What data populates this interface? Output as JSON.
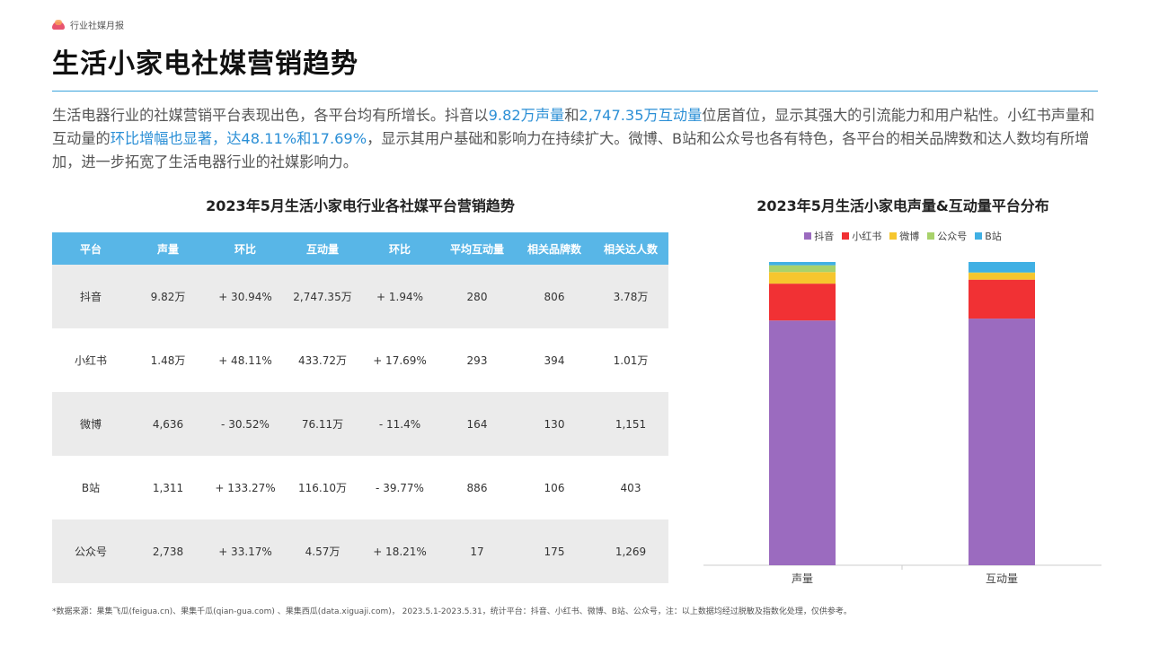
{
  "brand": {
    "name": "行业社媒月报"
  },
  "page_title": "生活小家电社媒营销趋势",
  "intro": {
    "p1": "生活电器行业的社媒营销平台表现出色，各平台均有所增长。抖音以",
    "h1": "9.82万声量",
    "p2": "和",
    "h2": "2,747.35万互动量",
    "p3": "位居首位，显示其强大的引流能力和用户粘性。小红书声量和互动量的",
    "h3": "环比增幅也显著，达48.11%和17.69%",
    "p4": "，显示其用户基础和影响力在持续扩大。微博、B站和公众号也各有特色，各平台的相关品牌数和达人数均有所增加，进一步拓宽了生活电器行业的社媒影响力。"
  },
  "table": {
    "title": "2023年5月生活小家电行业各社媒平台营销趋势",
    "headers": [
      "平台",
      "声量",
      "环比",
      "互动量",
      "环比",
      "平均互动量",
      "相关品牌数",
      "相关达人数"
    ],
    "rows": [
      [
        "抖音",
        "9.82万",
        "+ 30.94%",
        "2,747.35万",
        "+ 1.94%",
        "280",
        "806",
        "3.78万"
      ],
      [
        "小红书",
        "1.48万",
        "+ 48.11%",
        "433.72万",
        "+ 17.69%",
        "293",
        "394",
        "1.01万"
      ],
      [
        "微博",
        "4,636",
        "- 30.52%",
        "76.11万",
        "- 11.4%",
        "164",
        "130",
        "1,151"
      ],
      [
        "B站",
        "1,311",
        "+ 133.27%",
        "116.10万",
        "- 39.77%",
        "886",
        "106",
        "403"
      ],
      [
        "公众号",
        "2,738",
        "+ 33.17%",
        "4.57万",
        "+ 18.21%",
        "17",
        "175",
        "1,269"
      ]
    ]
  },
  "chart_data": {
    "type": "bar",
    "stacked": true,
    "percent": true,
    "title": "2023年5月生活小家电声量&互动量平台分布",
    "categories": [
      "声量",
      "互动量"
    ],
    "series": [
      {
        "name": "抖音",
        "color": "#9b6bbf",
        "values": [
          98200,
          27473500
        ]
      },
      {
        "name": "小红书",
        "color": "#f13134",
        "values": [
          14800,
          4337200
        ]
      },
      {
        "name": "微博",
        "color": "#f6c62e",
        "values": [
          4636,
          761100
        ]
      },
      {
        "name": "公众号",
        "color": "#a8d26b",
        "values": [
          2738,
          45700
        ]
      },
      {
        "name": "B站",
        "color": "#40b0e4",
        "values": [
          1311,
          1161000
        ]
      }
    ],
    "legend_position": "top",
    "grid": false
  },
  "footnote": "*数据来源：果集飞瓜(feigua.cn)、果集千瓜(qian-gua.com) 、果集西瓜(data.xiguaji.com)， 2023.5.1-2023.5.31，统计平台：抖音、小红书、微博、B站、公众号，注：以上数据均经过脱敏及指数化处理，仅供参考。"
}
